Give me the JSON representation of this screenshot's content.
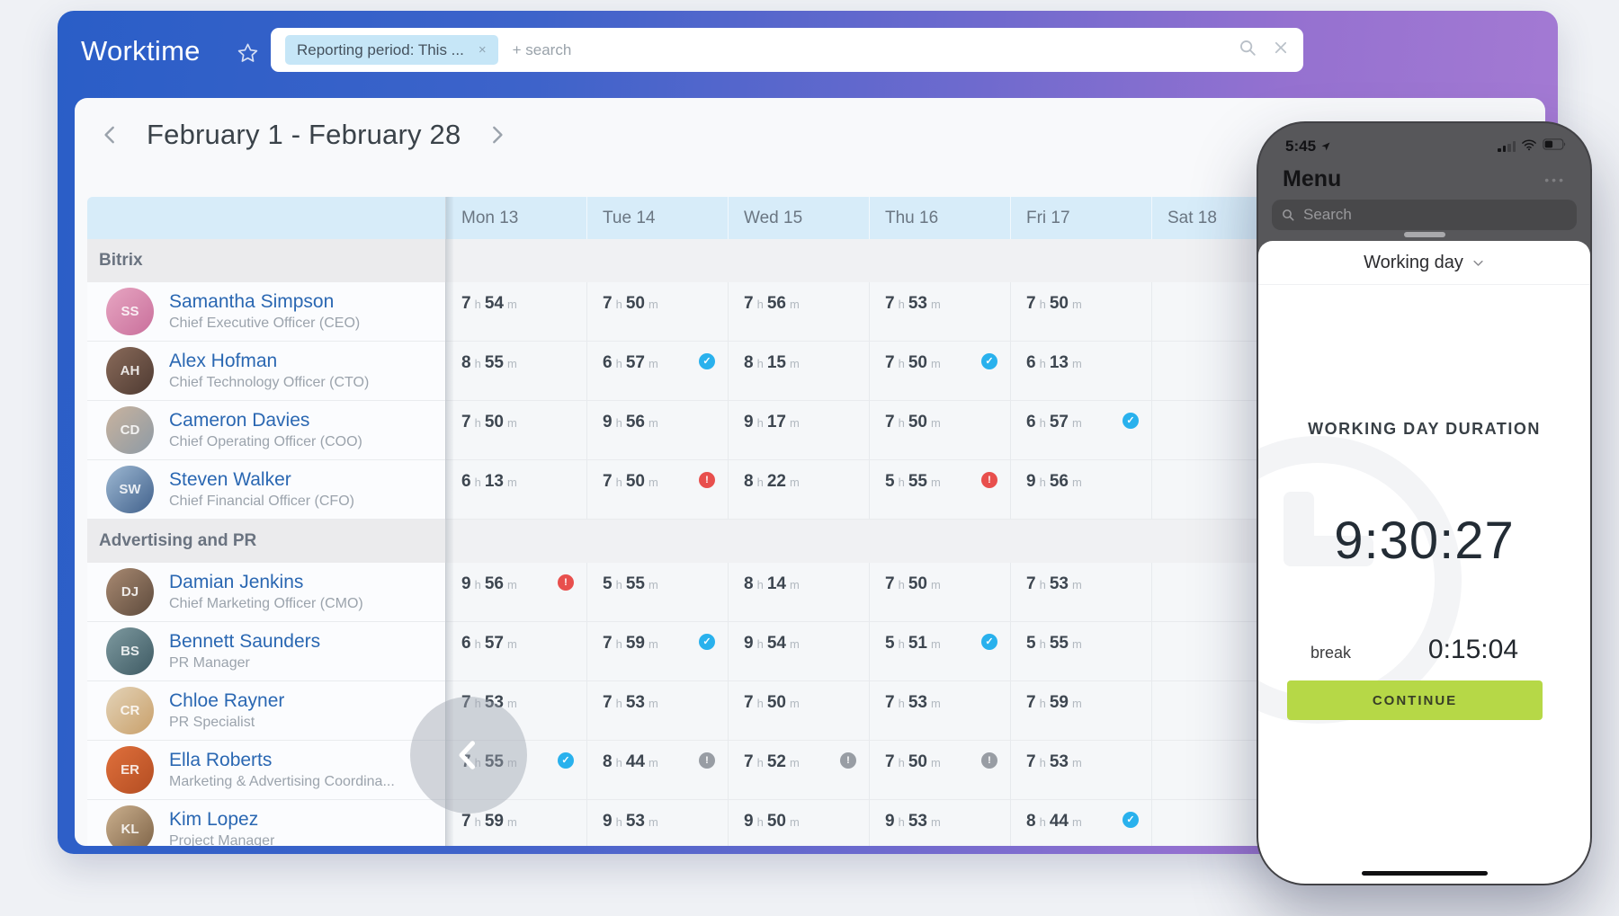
{
  "colors": {
    "header_gradient_left": "#2a5ec7",
    "header_gradient_right": "#a77cd4",
    "chip_bg": "#c6e6f7",
    "table_header_bg": "#d7ecf9",
    "name_link": "#2a67b2",
    "continue_accent": "#b6d847"
  },
  "app": {
    "title": "Worktime",
    "filter_chip": "Reporting period: This ...",
    "chip_close": "×",
    "search_placeholder": "+ search"
  },
  "date_nav": {
    "label": "February 1 - February 28"
  },
  "table": {
    "day_headers": [
      "Mon 13",
      "Tue 14",
      "Wed 15",
      "Thu 16",
      "Fri 17",
      "Sat 18"
    ],
    "unit_hours": "h",
    "unit_minutes": "m",
    "badge_colors": {
      "check": "#29b1ed",
      "warn": "#e84f4d",
      "info": "#989da4"
    },
    "badge_glyphs": {
      "check": "✓",
      "warn": "!",
      "info": "!"
    },
    "groups": [
      {
        "name": "Bitrix",
        "rows": [
          {
            "name": "Samantha Simpson",
            "title": "Chief Executive Officer (CEO)",
            "initials": "SS",
            "avatar": [
              "#e7a6c2",
              "#c96f9b"
            ],
            "cells": [
              {
                "h": 7,
                "m": 54
              },
              {
                "h": 7,
                "m": 50
              },
              {
                "h": 7,
                "m": 56
              },
              {
                "h": 7,
                "m": 53
              },
              {
                "h": 7,
                "m": 50
              },
              null
            ]
          },
          {
            "name": "Alex Hofman",
            "title": "Chief Technology Officer (CTO)",
            "initials": "AH",
            "avatar": [
              "#8a6b5a",
              "#4e3a32"
            ],
            "cells": [
              {
                "h": 8,
                "m": 55
              },
              {
                "h": 6,
                "m": 57,
                "badge": "check"
              },
              {
                "h": 8,
                "m": 15
              },
              {
                "h": 7,
                "m": 50,
                "badge": "check"
              },
              {
                "h": 6,
                "m": 13
              },
              null
            ]
          },
          {
            "name": "Cameron Davies",
            "title": "Chief Operating Officer (COO)",
            "initials": "CD",
            "avatar": [
              "#c9b39e",
              "#8d9aa5"
            ],
            "cells": [
              {
                "h": 7,
                "m": 50
              },
              {
                "h": 9,
                "m": 56
              },
              {
                "h": 9,
                "m": 17
              },
              {
                "h": 7,
                "m": 50
              },
              {
                "h": 6,
                "m": 57,
                "badge": "check"
              },
              null
            ]
          },
          {
            "name": "Steven Walker",
            "title": "Chief Financial Officer (CFO)",
            "initials": "SW",
            "avatar": [
              "#9db8d2",
              "#41618c"
            ],
            "cells": [
              {
                "h": 6,
                "m": 13
              },
              {
                "h": 7,
                "m": 50,
                "badge": "warn"
              },
              {
                "h": 8,
                "m": 22
              },
              {
                "h": 5,
                "m": 55,
                "badge": "warn"
              },
              {
                "h": 9,
                "m": 56
              },
              null
            ]
          }
        ]
      },
      {
        "name": "Advertising and PR",
        "rows": [
          {
            "name": "Damian Jenkins",
            "title": "Chief Marketing Officer (CMO)",
            "initials": "DJ",
            "avatar": [
              "#a98a72",
              "#5d4a3c"
            ],
            "cells": [
              {
                "h": 9,
                "m": 56,
                "badge": "warn"
              },
              {
                "h": 5,
                "m": 55
              },
              {
                "h": 8,
                "m": 14
              },
              {
                "h": 7,
                "m": 50
              },
              {
                "h": 7,
                "m": 53
              },
              null
            ]
          },
          {
            "name": "Bennett Saunders",
            "title": "PR Manager",
            "initials": "BS",
            "avatar": [
              "#7e9aa0",
              "#3e5a63"
            ],
            "cells": [
              {
                "h": 6,
                "m": 57
              },
              {
                "h": 7,
                "m": 59,
                "badge": "check"
              },
              {
                "h": 9,
                "m": 54
              },
              {
                "h": 5,
                "m": 51,
                "badge": "check"
              },
              {
                "h": 5,
                "m": 55
              },
              null
            ]
          },
          {
            "name": "Chloe Rayner",
            "title": "PR Specialist",
            "initials": "CR",
            "avatar": [
              "#e3d3b8",
              "#c9a06a"
            ],
            "cells": [
              {
                "h": 7,
                "m": 53
              },
              {
                "h": 7,
                "m": 53
              },
              {
                "h": 7,
                "m": 50
              },
              {
                "h": 7,
                "m": 53
              },
              {
                "h": 7,
                "m": 59
              },
              null
            ]
          },
          {
            "name": "Ella Roberts",
            "title": "Marketing & Advertising Coordina...",
            "initials": "ER",
            "avatar": [
              "#e0703c",
              "#b34d22"
            ],
            "cells": [
              {
                "h": 7,
                "m": 55,
                "badge": "check"
              },
              {
                "h": 8,
                "m": 44,
                "badge": "info"
              },
              {
                "h": 7,
                "m": 52,
                "badge": "info"
              },
              {
                "h": 7,
                "m": 50,
                "badge": "info"
              },
              {
                "h": 7,
                "m": 53
              },
              null
            ]
          },
          {
            "name": "Kim Lopez",
            "title": "Project Manager",
            "initials": "KL",
            "avatar": [
              "#cbb08e",
              "#7d6246"
            ],
            "cells": [
              {
                "h": 7,
                "m": 59
              },
              {
                "h": 9,
                "m": 53
              },
              {
                "h": 9,
                "m": 50
              },
              {
                "h": 9,
                "m": 53
              },
              {
                "h": 8,
                "m": 44,
                "badge": "check"
              },
              null
            ]
          }
        ]
      }
    ]
  },
  "phone": {
    "status": {
      "time": "5:45"
    },
    "menu_title": "Menu",
    "more": "•••",
    "search_placeholder": "Search",
    "sheet": {
      "mode_label": "Working day",
      "duration_label": "WORKING DAY DURATION",
      "duration": "9:30:27",
      "break_label": "break",
      "break_value": "0:15:04",
      "continue_label": "CONTINUE",
      "accent": "#b6d847"
    }
  }
}
